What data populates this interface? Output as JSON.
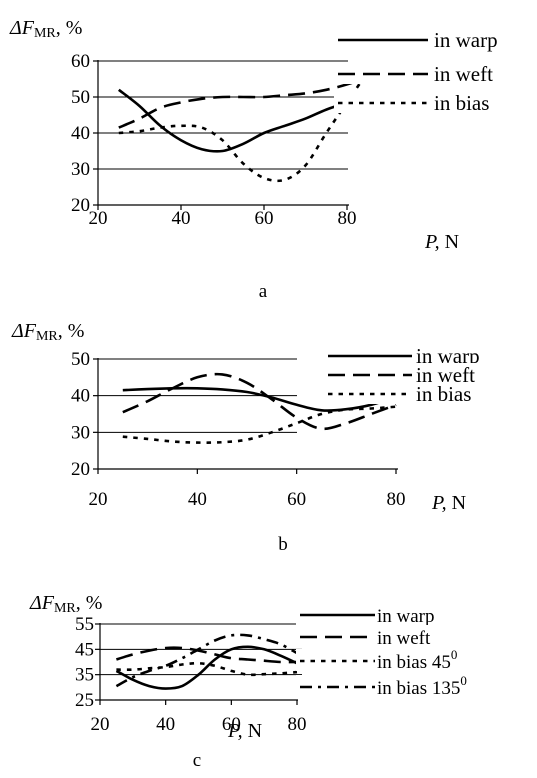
{
  "chart_data": [
    {
      "type": "line",
      "panel_label": "a",
      "ylabel_italic": "ΔF",
      "ylabel_sub": "MR",
      "ylabel_suffix": ", %",
      "xlabel_italic": "P,",
      "xlabel_suffix": " N",
      "xlim": [
        20,
        100
      ],
      "ylim": [
        20,
        60
      ],
      "x_ticks": [
        "20",
        "40",
        "60",
        "80"
      ],
      "y_ticks": [
        "20",
        "30",
        "40",
        "50",
        "60"
      ],
      "gridlines": [
        30,
        40,
        50,
        60
      ],
      "legend_position": "right",
      "series": [
        {
          "name": "in warp",
          "dash": "solid",
          "x": [
            25,
            30,
            35,
            40,
            45,
            50,
            55,
            60,
            65,
            70,
            75,
            80,
            85
          ],
          "y": [
            52,
            47.5,
            42,
            38,
            35.5,
            35,
            37,
            40,
            42,
            44,
            46.5,
            48.5,
            51
          ]
        },
        {
          "name": "in weft",
          "dash": "dash",
          "x": [
            25,
            30,
            35,
            40,
            45,
            50,
            55,
            60,
            65,
            70,
            75,
            80,
            85
          ],
          "y": [
            41.5,
            44,
            47,
            48.5,
            49.5,
            50,
            50,
            50,
            50.5,
            51,
            52,
            53.5,
            55.5
          ]
        },
        {
          "name": "in bias",
          "dash": "dot",
          "x": [
            25,
            30,
            35,
            40,
            45,
            50,
            55,
            60,
            65,
            70,
            75,
            80,
            85
          ],
          "y": [
            40,
            40.5,
            41.5,
            42,
            41.5,
            38,
            31.5,
            27.5,
            27,
            31,
            40,
            48.5,
            57
          ]
        }
      ]
    },
    {
      "type": "line",
      "panel_label": "b",
      "ylabel_italic": "ΔF",
      "ylabel_sub": "MR",
      "ylabel_suffix": ", %",
      "xlabel_italic": "P,",
      "xlabel_suffix": " N",
      "xlim": [
        20,
        80
      ],
      "ylim": [
        20,
        50
      ],
      "x_ticks": [
        "20",
        "40",
        "60",
        "80"
      ],
      "y_ticks": [
        "20",
        "30",
        "40",
        "50"
      ],
      "gridlines": [
        30,
        40,
        50
      ],
      "legend_position": "right",
      "series": [
        {
          "name": "in warp",
          "dash": "solid",
          "x": [
            25,
            30,
            35,
            40,
            45,
            50,
            55,
            60,
            65,
            70,
            75,
            80
          ],
          "y": [
            41.5,
            41.8,
            42,
            42,
            41.7,
            41,
            39.5,
            37.5,
            36,
            36.3,
            37.5,
            39.5
          ]
        },
        {
          "name": "in weft",
          "dash": "dash",
          "x": [
            25,
            30,
            35,
            40,
            45,
            50,
            55,
            60,
            65,
            70,
            75,
            80
          ],
          "y": [
            35.5,
            38.5,
            42,
            45,
            45.8,
            43.5,
            39,
            34,
            31,
            32.5,
            35,
            37.5
          ]
        },
        {
          "name": "in bias",
          "dash": "dot",
          "x": [
            25,
            30,
            35,
            40,
            45,
            50,
            55,
            60,
            65,
            70,
            75,
            80
          ],
          "y": [
            28.8,
            28.2,
            27.5,
            27.2,
            27.3,
            28,
            30,
            32.5,
            35,
            36.2,
            36.5,
            37
          ]
        }
      ]
    },
    {
      "type": "line",
      "panel_label": "c",
      "ylabel_italic": "ΔF",
      "ylabel_sub": "MR",
      "ylabel_suffix": ", %",
      "xlabel_italic": "P,",
      "xlabel_suffix": " N",
      "xlim": [
        20,
        80
      ],
      "ylim": [
        25,
        55
      ],
      "x_ticks": [
        "20",
        "40",
        "60",
        "80"
      ],
      "y_ticks": [
        "25",
        "35",
        "45",
        "55"
      ],
      "gridlines": [
        35,
        45,
        55
      ],
      "legend_position": "right",
      "series": [
        {
          "name": "in warp",
          "dash": "solid",
          "x": [
            25,
            30,
            35,
            40,
            45,
            50,
            55,
            60,
            65,
            70,
            75,
            80
          ],
          "y": [
            36.5,
            33,
            30.5,
            29.5,
            30.5,
            35,
            41,
            45,
            46,
            45,
            42.5,
            39.5
          ]
        },
        {
          "name": "in weft",
          "dash": "dash",
          "x": [
            25,
            30,
            35,
            40,
            45,
            50,
            55,
            60,
            65,
            70,
            75,
            80
          ],
          "y": [
            41,
            43,
            44.5,
            45.5,
            45.5,
            44.5,
            43,
            41.5,
            41,
            40.5,
            40,
            40
          ]
        },
        {
          "name": "in bias 45",
          "name_sup": "0",
          "dash": "dot",
          "x": [
            25,
            30,
            35,
            40,
            45,
            50,
            55,
            60,
            65,
            70,
            75,
            80
          ],
          "y": [
            37,
            37,
            37.5,
            38,
            39,
            39.5,
            38.5,
            36.5,
            35,
            35.2,
            35.5,
            36
          ]
        },
        {
          "name": "in bias 135",
          "name_sup": "0",
          "dash": "dashdot",
          "x": [
            25,
            30,
            35,
            40,
            45,
            50,
            55,
            60,
            65,
            70,
            75,
            80
          ],
          "y": [
            30.5,
            34,
            36.5,
            38.5,
            41.5,
            45,
            48.5,
            50.5,
            50.5,
            49,
            47,
            43.5
          ]
        }
      ]
    }
  ]
}
